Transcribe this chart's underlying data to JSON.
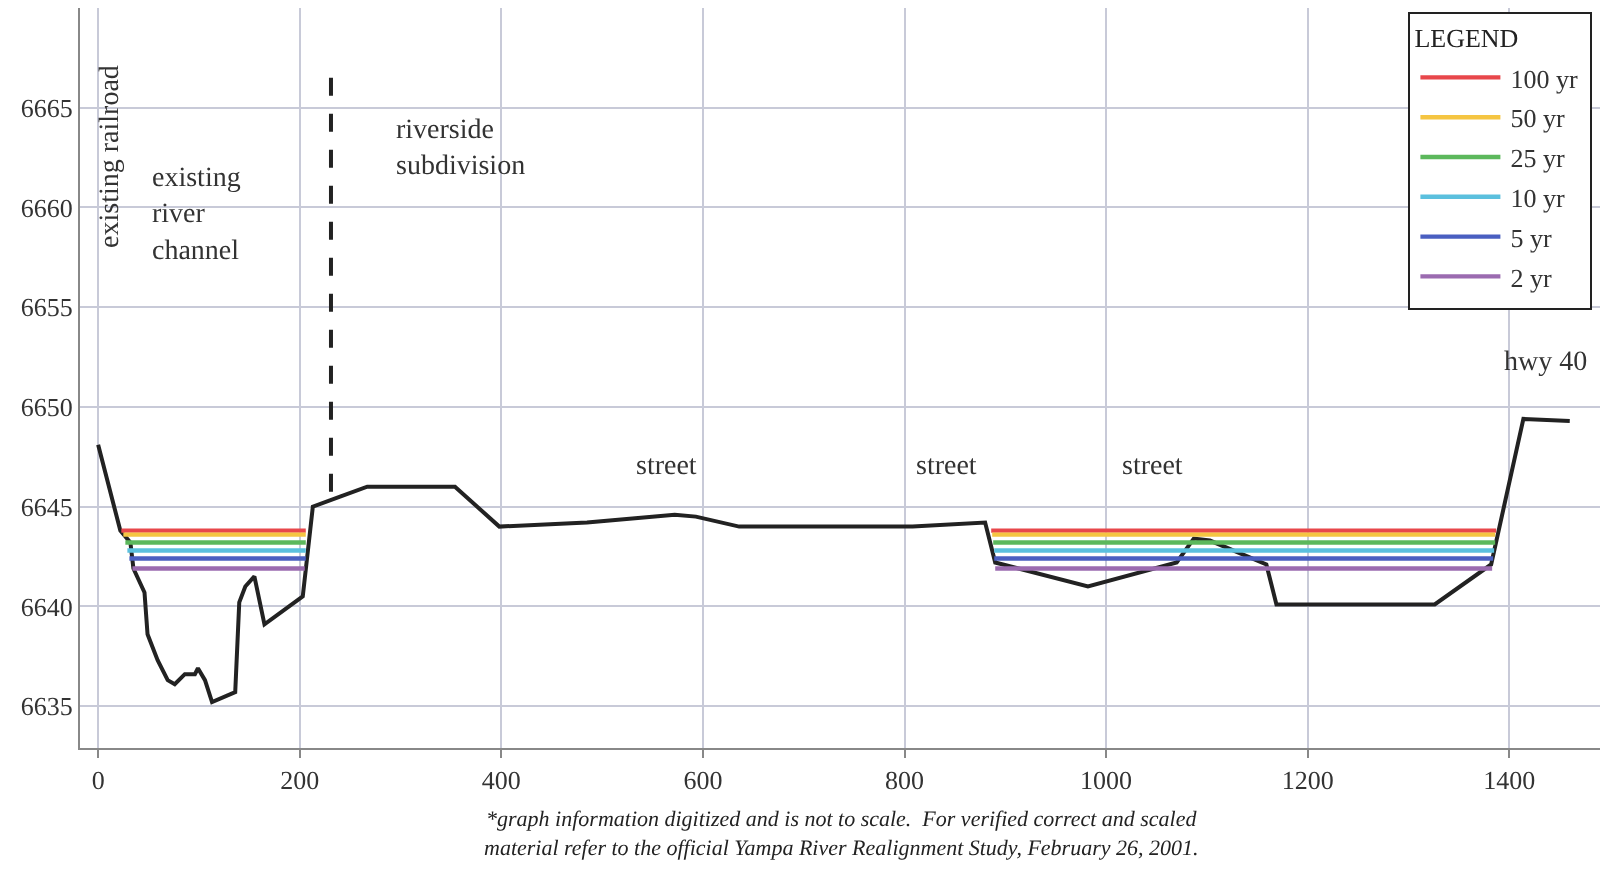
{
  "chart_data": {
    "type": "line",
    "x": [
      0,
      22,
      32,
      35,
      46,
      49,
      59,
      69,
      76,
      86,
      96,
      99,
      106,
      113,
      136,
      140,
      146,
      155,
      165,
      203,
      213,
      240,
      267,
      354,
      398,
      485,
      572,
      593,
      636,
      690,
      808,
      880,
      890,
      982,
      1070,
      1087,
      1103,
      1159,
      1169,
      1326,
      1382,
      1414,
      1460
    ],
    "series": [
      {
        "color": "#222222",
        "values": [
          6648.1,
          6643.8,
          6643.2,
          6641.9,
          6640.7,
          6638.6,
          6637.3,
          6636.3,
          6636.1,
          6636.6,
          6636.6,
          6636.9,
          6636.3,
          6635.2,
          6635.7,
          6640.2,
          6641.0,
          6641.5,
          6639.1,
          6640.5,
          6645.0,
          6645.5,
          6646.0,
          6646.0,
          6644.0,
          6644.2,
          6644.6,
          6644.5,
          6644.0,
          6644.0,
          6644.0,
          6644.2,
          6642.2,
          6641.0,
          6642.2,
          6643.4,
          6643.3,
          6642.1,
          6640.1,
          6640.1,
          6642.1,
          6649.4,
          6649.3
        ]
      },
      {
        "name": "100 yr",
        "color": "#e8474b",
        "x": [
          23,
          206,
          886,
          1387
        ],
        "values": [
          6643.8,
          6643.8,
          6643.8,
          6643.8
        ]
      },
      {
        "name": "50 yr",
        "color": "#f5c542",
        "x": [
          25,
          206,
          887,
          1386
        ],
        "values": [
          6643.6,
          6643.6,
          6643.6,
          6643.6
        ]
      },
      {
        "name": "25 yr",
        "color": "#5cb85c",
        "x": [
          27,
          206,
          888,
          1386
        ],
        "values": [
          6643.2,
          6643.2,
          6643.2,
          6643.2
        ]
      },
      {
        "name": "10 yr",
        "color": "#5bc0de",
        "x": [
          29,
          206,
          889,
          1385
        ],
        "values": [
          6642.8,
          6642.8,
          6642.8,
          6642.8
        ]
      },
      {
        "name": "5 yr",
        "color": "#4a5fc1",
        "x": [
          31,
          206,
          889,
          1384
        ],
        "values": [
          6642.4,
          6642.4,
          6642.4,
          6642.4
        ]
      },
      {
        "name": "2 yr",
        "color": "#9b6bb0",
        "x": [
          34,
          205,
          890,
          1383
        ],
        "values": [
          6641.9,
          6641.9,
          6641.9,
          6641.9
        ]
      },
      {
        "color": "#222222",
        "line_style": "dashed",
        "x": [
          231,
          231
        ],
        "values": [
          6666.5,
          6645.4
        ]
      }
    ],
    "xlim": [
      -18,
      1490
    ],
    "ylim": [
      6632.9,
      6670
    ],
    "xticks": [
      0,
      200,
      400,
      600,
      800,
      1000,
      1200,
      1400
    ],
    "yticks": [
      6635,
      6640,
      6645,
      6650,
      6655,
      6660,
      6665
    ],
    "grid": true,
    "legend": "top right",
    "legend_title": "LEGEND",
    "annotations": [
      "existing railroad",
      "existing river channel",
      "riverside subdivision",
      "street",
      "street",
      "street",
      "hwy 40",
      "*graph information digitized and is not to scale.  For verified correct and scaled material refer to the official Yampa River Realignment Study, February 26, 2001."
    ]
  }
}
